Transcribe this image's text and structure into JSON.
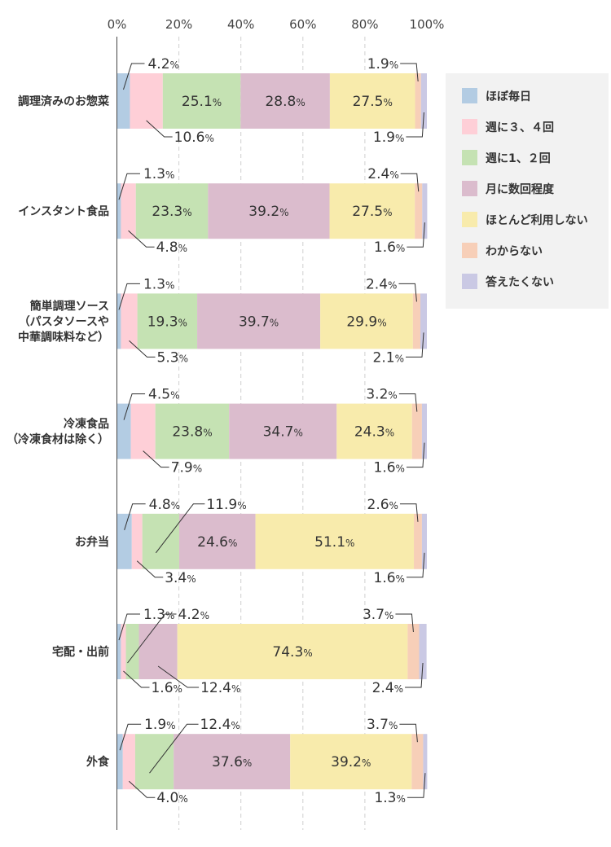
{
  "chart_data": {
    "type": "bar",
    "orientation": "horizontal",
    "stacked": "100%",
    "xlim": [
      0,
      100
    ],
    "ticks": [
      "0%",
      "20%",
      "40%",
      "60%",
      "80%",
      "100%"
    ],
    "tick_values": [
      0,
      20,
      40,
      60,
      80,
      100
    ],
    "grid": "vertical dashed",
    "legend_position": "right",
    "categories": [
      [
        "調理済みのお惣菜"
      ],
      [
        "インスタント食品"
      ],
      [
        "簡単調理ソース",
        "（パスタソースや",
        "中華調味料など）"
      ],
      [
        "冷凍食品",
        "（冷凍食材は除く）"
      ],
      [
        "お弁当"
      ],
      [
        "宅配・出前"
      ],
      [
        "外食"
      ]
    ],
    "series": [
      {
        "name": "ほぼ毎日",
        "color": "#b3cce3",
        "values": [
          4.2,
          1.3,
          1.3,
          4.5,
          4.8,
          1.3,
          1.9
        ]
      },
      {
        "name": "週に３、４回",
        "color": "#fecfd7",
        "values": [
          10.6,
          4.8,
          5.3,
          7.9,
          3.4,
          1.6,
          4.0
        ]
      },
      {
        "name": "週に1、２回",
        "color": "#c5e2b3",
        "values": [
          25.1,
          23.3,
          19.3,
          23.8,
          11.9,
          4.2,
          12.4
        ]
      },
      {
        "name": "月に数回程度",
        "color": "#dbbccd",
        "values": [
          28.8,
          39.2,
          39.7,
          34.7,
          24.6,
          12.4,
          37.6
        ]
      },
      {
        "name": "ほとんど利用しない",
        "color": "#f8ebac",
        "values": [
          27.5,
          27.5,
          29.9,
          24.3,
          51.1,
          74.3,
          39.2
        ]
      },
      {
        "name": "わからない",
        "color": "#f7cfb8",
        "values": [
          1.9,
          2.4,
          2.4,
          3.2,
          2.6,
          3.7,
          3.7
        ]
      },
      {
        "name": "答えたくない",
        "color": "#cac9e4",
        "values": [
          1.9,
          1.6,
          2.1,
          1.6,
          1.6,
          2.4,
          1.3
        ]
      }
    ],
    "value_labels": [
      {
        "row": 0,
        "series": 0,
        "text": "4.2"
      },
      {
        "row": 0,
        "series": 1,
        "text": "10.6"
      },
      {
        "row": 0,
        "series": 2,
        "text": "25.1"
      },
      {
        "row": 0,
        "series": 3,
        "text": "28.8"
      },
      {
        "row": 0,
        "series": 4,
        "text": "27.5"
      },
      {
        "row": 0,
        "series": 5,
        "text": "1.9"
      },
      {
        "row": 0,
        "series": 6,
        "text": "1.9"
      },
      {
        "row": 1,
        "series": 0,
        "text": "1.3"
      },
      {
        "row": 1,
        "series": 1,
        "text": "4.8"
      },
      {
        "row": 1,
        "series": 2,
        "text": "23.3"
      },
      {
        "row": 1,
        "series": 3,
        "text": "39.2"
      },
      {
        "row": 1,
        "series": 4,
        "text": "27.5"
      },
      {
        "row": 1,
        "series": 5,
        "text": "2.4"
      },
      {
        "row": 1,
        "series": 6,
        "text": "1.6"
      },
      {
        "row": 2,
        "series": 0,
        "text": "1.3"
      },
      {
        "row": 2,
        "series": 1,
        "text": "5.3"
      },
      {
        "row": 2,
        "series": 2,
        "text": "19.3"
      },
      {
        "row": 2,
        "series": 3,
        "text": "39.7"
      },
      {
        "row": 2,
        "series": 4,
        "text": "29.9"
      },
      {
        "row": 2,
        "series": 5,
        "text": "2.4"
      },
      {
        "row": 2,
        "series": 6,
        "text": "2.1"
      },
      {
        "row": 3,
        "series": 0,
        "text": "4.5"
      },
      {
        "row": 3,
        "series": 1,
        "text": "7.9"
      },
      {
        "row": 3,
        "series": 2,
        "text": "23.8"
      },
      {
        "row": 3,
        "series": 3,
        "text": "34.7"
      },
      {
        "row": 3,
        "series": 4,
        "text": "24.3"
      },
      {
        "row": 3,
        "series": 5,
        "text": "3.2"
      },
      {
        "row": 3,
        "series": 6,
        "text": "1.6"
      },
      {
        "row": 4,
        "series": 0,
        "text": "4.8"
      },
      {
        "row": 4,
        "series": 1,
        "text": "3.4"
      },
      {
        "row": 4,
        "series": 2,
        "text": "11.9"
      },
      {
        "row": 4,
        "series": 3,
        "text": "24.6"
      },
      {
        "row": 4,
        "series": 4,
        "text": "51.1"
      },
      {
        "row": 4,
        "series": 5,
        "text": "2.6"
      },
      {
        "row": 4,
        "series": 6,
        "text": "1.6"
      },
      {
        "row": 5,
        "series": 0,
        "text": "1.3"
      },
      {
        "row": 5,
        "series": 1,
        "text": "1.6"
      },
      {
        "row": 5,
        "series": 2,
        "text": "4.2"
      },
      {
        "row": 5,
        "series": 3,
        "text": "12.4"
      },
      {
        "row": 5,
        "series": 4,
        "text": "74.3"
      },
      {
        "row": 5,
        "series": 5,
        "text": "3.7"
      },
      {
        "row": 5,
        "series": 6,
        "text": "2.4"
      },
      {
        "row": 6,
        "series": 0,
        "text": "1.9"
      },
      {
        "row": 6,
        "series": 1,
        "text": "4.0"
      },
      {
        "row": 6,
        "series": 2,
        "text": "12.4"
      },
      {
        "row": 6,
        "series": 3,
        "text": "37.6"
      },
      {
        "row": 6,
        "series": 4,
        "text": "39.2"
      },
      {
        "row": 6,
        "series": 5,
        "text": "3.7"
      },
      {
        "row": 6,
        "series": 6,
        "text": "1.3"
      }
    ],
    "unit": "%",
    "title": "",
    "xlabel": "",
    "ylabel": ""
  }
}
